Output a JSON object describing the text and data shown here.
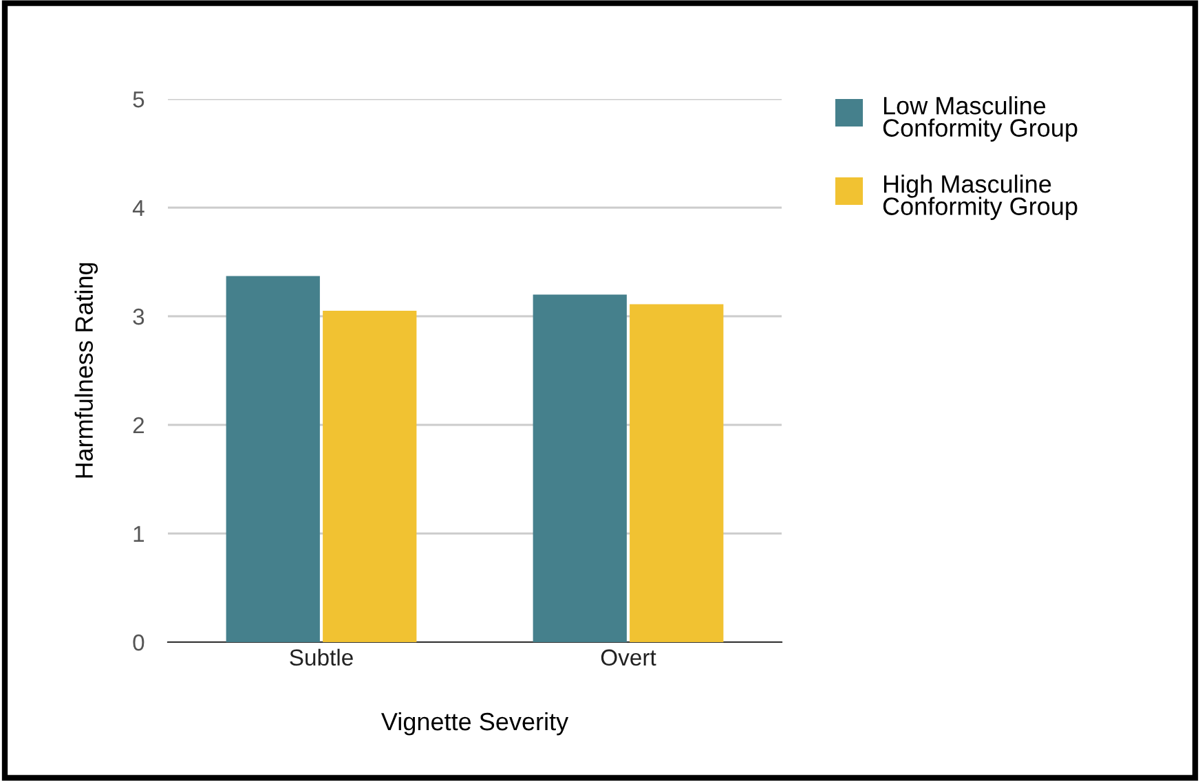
{
  "chart_data": {
    "type": "bar",
    "xlabel": "Vignette Severity",
    "ylabel": "Harmfulness Rating",
    "categories": [
      "Subtle",
      "Overt"
    ],
    "series": [
      {
        "name": "Low Masculine Conformity Group",
        "color": "#45808c",
        "values": [
          3.37,
          3.2
        ]
      },
      {
        "name": "High Masculine Conformity Group",
        "color": "#f1c232",
        "values": [
          3.05,
          3.11
        ]
      }
    ],
    "ylim": [
      0,
      5
    ],
    "yticks": [
      0,
      1,
      2,
      3,
      4,
      5
    ],
    "grid": "y",
    "legend": "top right"
  }
}
